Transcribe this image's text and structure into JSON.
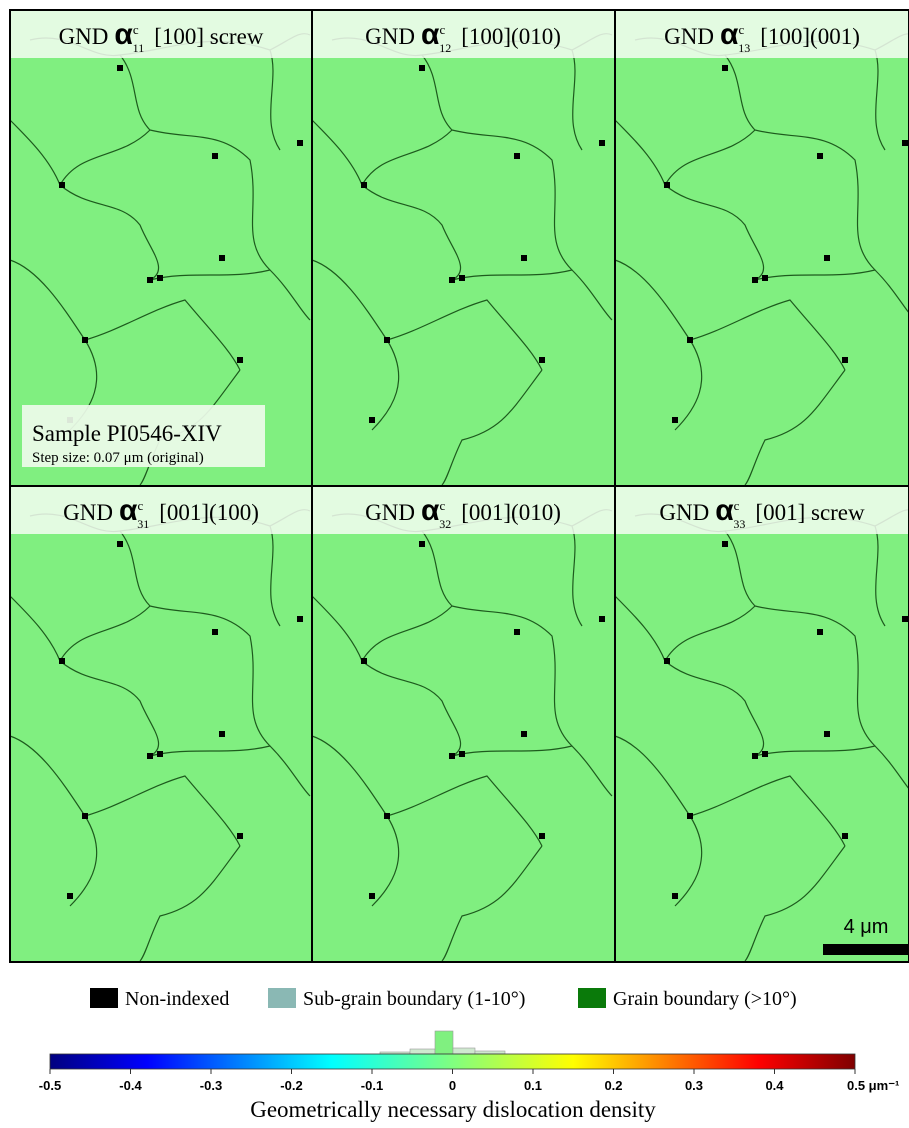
{
  "panels": [
    {
      "title": {
        "prefix": "GND",
        "symbol": "α",
        "sup": "c",
        "sub": "11",
        "suffix": "[100] screw"
      }
    },
    {
      "title": {
        "prefix": "GND",
        "symbol": "α",
        "sup": "c",
        "sub": "12",
        "suffix": "[100](010)"
      }
    },
    {
      "title": {
        "prefix": "GND",
        "symbol": "α",
        "sup": "c",
        "sub": "13",
        "suffix": "[100](001)"
      }
    },
    {
      "title": {
        "prefix": "GND",
        "symbol": "α",
        "sup": "c",
        "sub": "31",
        "suffix": "[001](100)"
      }
    },
    {
      "title": {
        "prefix": "GND",
        "symbol": "α",
        "sup": "c",
        "sub": "32",
        "suffix": "[001](010)"
      }
    },
    {
      "title": {
        "prefix": "GND",
        "symbol": "α",
        "sup": "c",
        "sub": "33",
        "suffix": "[001] screw"
      }
    }
  ],
  "sample": {
    "name": "Sample PI0546-XIV",
    "step_size": "Step size: 0.07 μm (original)"
  },
  "scale_bar": "4 μm",
  "legend": [
    "Non-indexed",
    "Sub-grain boundary (1-10°)",
    "Grain boundary (>10°)"
  ],
  "colorbar": {
    "ticks": [
      -0.5,
      -0.4,
      -0.3,
      -0.2,
      -0.1,
      0,
      0.1,
      0.2,
      0.3,
      0.4,
      {
        "value": 0.5,
        "label": "0.5 μm⁻¹"
      }
    ]
  },
  "caption": "Geometrically necessary dislocation density"
}
